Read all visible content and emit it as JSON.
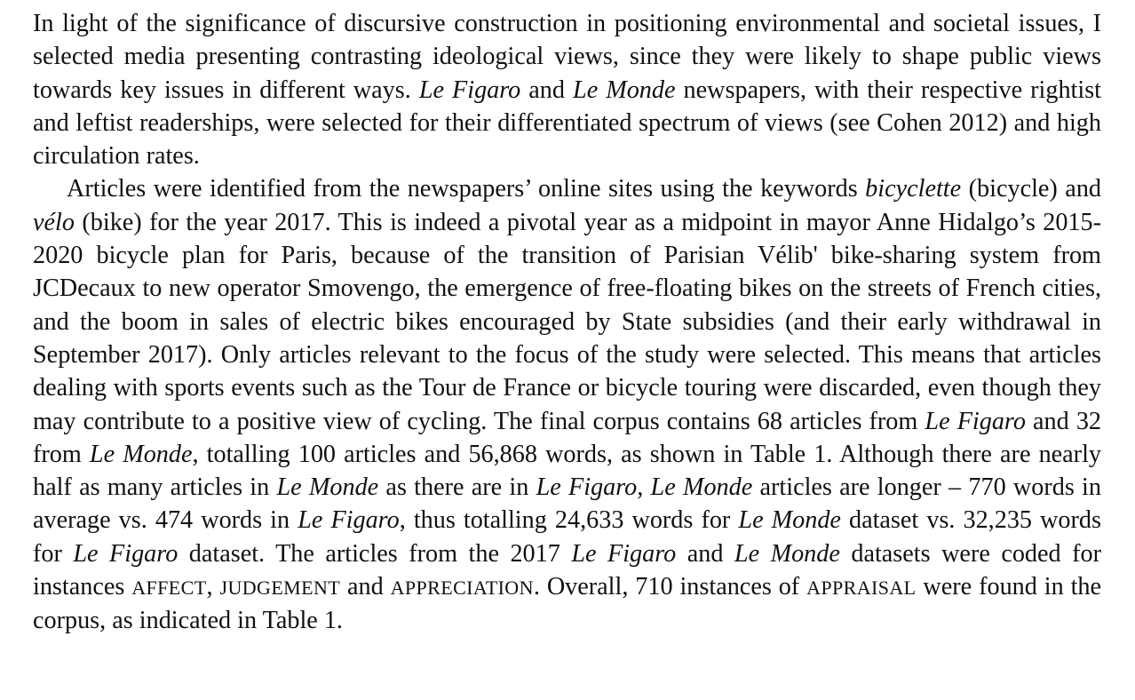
{
  "document": {
    "paragraphs": [
      {
        "id": "p1",
        "runs": [
          {
            "t": "In light of the significance of discursive construction in positioning environmental and societal issues, I selected media presenting contrasting ideological views, since they were likely to shape public views towards key issues in different ways. "
          },
          {
            "t": "Le Figaro",
            "s": "it"
          },
          {
            "t": " and "
          },
          {
            "t": "Le Monde",
            "s": "it"
          },
          {
            "t": " newspapers, with their respective rightist and leftist readerships, were selected for their differentiated spectrum of views (see Cohen 2012) and high circulation rates."
          }
        ]
      },
      {
        "id": "p2",
        "runs": [
          {
            "t": "Articles were identified from the newspapers’ online sites using the keywords "
          },
          {
            "t": "bicyclette",
            "s": "it"
          },
          {
            "t": " (bicycle) and "
          },
          {
            "t": "vélo",
            "s": "it"
          },
          {
            "t": " (bike) for the year 2017. This is indeed a pivotal year as a midpoint in mayor Anne Hidalgo’s 2015-2020 bicycle plan for Paris, because of the transition of Parisian Vélib' bike-sharing system from JCDecaux to new operator Smovengo, the emergence of free-floating bikes on the streets of French cities, and the boom in sales of electric bikes encouraged by State subsidies (and their early withdrawal in September 2017). Only articles relevant to the focus of the study were selected. This means that articles dealing with sports events such as the Tour de France or bicycle touring were discarded, even though they may contribute to a positive view of cycling. The final corpus contains 68 articles from "
          },
          {
            "t": "Le Figaro",
            "s": "it"
          },
          {
            "t": " and 32 from "
          },
          {
            "t": "Le Monde",
            "s": "it"
          },
          {
            "t": ", totalling 100 articles and 56,868 words, as shown in Table 1. Although there are nearly half as many articles in "
          },
          {
            "t": "Le Monde",
            "s": "it"
          },
          {
            "t": " as there are in "
          },
          {
            "t": "Le Figaro",
            "s": "it"
          },
          {
            "t": ", "
          },
          {
            "t": "Le Monde",
            "s": "it"
          },
          {
            "t": " articles are longer – 770 words in average vs. 474 words in "
          },
          {
            "t": "Le Figaro",
            "s": "it"
          },
          {
            "t": ", thus totalling 24,633 words for "
          },
          {
            "t": "Le Monde",
            "s": "it"
          },
          {
            "t": " dataset vs. 32,235 words for "
          },
          {
            "t": "Le Figaro",
            "s": "it"
          },
          {
            "t": " dataset. The articles from the 2017 "
          },
          {
            "t": "Le Figaro",
            "s": "it"
          },
          {
            "t": " and "
          },
          {
            "t": "Le Monde",
            "s": "it"
          },
          {
            "t": " datasets were coded for instances "
          },
          {
            "t": "AFFECT",
            "s": "sc"
          },
          {
            "t": ", "
          },
          {
            "t": "JUDGEMENT",
            "s": "sc"
          },
          {
            "t": " and "
          },
          {
            "t": "APPRECIATION",
            "s": "sc"
          },
          {
            "t": ". Overall, 710 instances of "
          },
          {
            "t": "APPRAISAL",
            "s": "sc"
          },
          {
            "t": " were found in the corpus, as indicated in Table 1."
          }
        ]
      }
    ]
  }
}
